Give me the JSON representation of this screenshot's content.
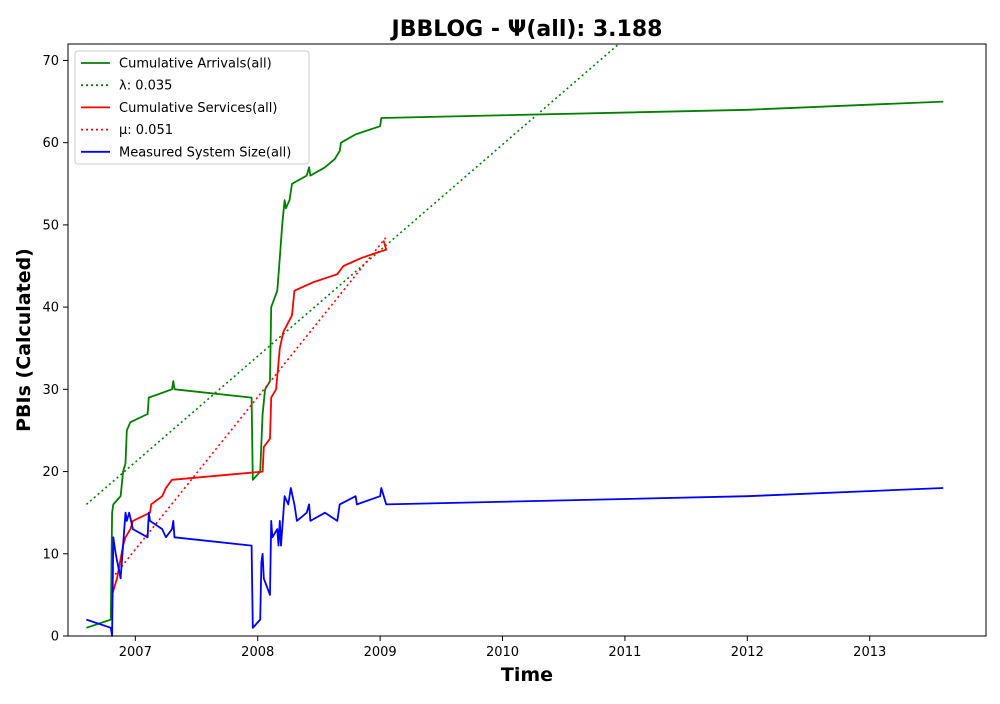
{
  "chart_data": {
    "type": "line",
    "title": "JBBLOG -  Ψ(all): 3.188",
    "xlabel": "Time",
    "ylabel": "PBIs (Calculated)",
    "xlim": [
      2006.45,
      2013.95
    ],
    "ylim": [
      0,
      72
    ],
    "x_ticks": [
      2007,
      2008,
      2009,
      2010,
      2011,
      2012,
      2013
    ],
    "y_ticks": [
      0,
      10,
      20,
      30,
      40,
      50,
      60,
      70
    ],
    "legend_position": "top-left",
    "grid": false,
    "series": [
      {
        "name": "Cumulative Arrivals(all)",
        "color": "#008000",
        "style": "solid",
        "points": [
          [
            2006.6,
            1
          ],
          [
            2006.8,
            2
          ],
          [
            2006.81,
            15
          ],
          [
            2006.82,
            16
          ],
          [
            2006.88,
            17
          ],
          [
            2006.9,
            20
          ],
          [
            2006.92,
            21
          ],
          [
            2006.93,
            25
          ],
          [
            2006.96,
            26
          ],
          [
            2007.1,
            27
          ],
          [
            2007.11,
            29
          ],
          [
            2007.3,
            30
          ],
          [
            2007.31,
            31
          ],
          [
            2007.32,
            30
          ],
          [
            2007.95,
            29
          ],
          [
            2007.96,
            19
          ],
          [
            2008.02,
            20
          ],
          [
            2008.04,
            27
          ],
          [
            2008.06,
            30
          ],
          [
            2008.1,
            31
          ],
          [
            2008.11,
            40
          ],
          [
            2008.16,
            42
          ],
          [
            2008.18,
            46
          ],
          [
            2008.2,
            50
          ],
          [
            2008.22,
            53
          ],
          [
            2008.23,
            52
          ],
          [
            2008.26,
            53
          ],
          [
            2008.28,
            55
          ],
          [
            2008.4,
            56
          ],
          [
            2008.42,
            57
          ],
          [
            2008.43,
            56
          ],
          [
            2008.55,
            57
          ],
          [
            2008.63,
            58
          ],
          [
            2008.67,
            59
          ],
          [
            2008.68,
            60
          ],
          [
            2008.8,
            61
          ],
          [
            2009.0,
            62
          ],
          [
            2009.01,
            63
          ],
          [
            2012.0,
            64
          ],
          [
            2013.6,
            65
          ]
        ]
      },
      {
        "name": "λ: 0.035",
        "color": "#008000",
        "style": "dotted",
        "points": [
          [
            2006.6,
            16
          ],
          [
            2010.95,
            72
          ]
        ]
      },
      {
        "name": "Cumulative Services(all)",
        "color": "#ff0000",
        "style": "solid",
        "points": [
          [
            2006.81,
            5
          ],
          [
            2006.85,
            7
          ],
          [
            2006.9,
            11
          ],
          [
            2006.92,
            12
          ],
          [
            2006.96,
            13
          ],
          [
            2006.98,
            14
          ],
          [
            2007.12,
            15
          ],
          [
            2007.13,
            16
          ],
          [
            2007.22,
            17
          ],
          [
            2007.25,
            18
          ],
          [
            2007.3,
            19
          ],
          [
            2008.04,
            20
          ],
          [
            2008.05,
            23
          ],
          [
            2008.1,
            24
          ],
          [
            2008.11,
            29
          ],
          [
            2008.15,
            30
          ],
          [
            2008.18,
            35
          ],
          [
            2008.21,
            37
          ],
          [
            2008.28,
            39
          ],
          [
            2008.3,
            42
          ],
          [
            2008.45,
            43
          ],
          [
            2008.65,
            44
          ],
          [
            2008.7,
            45
          ],
          [
            2008.85,
            46
          ],
          [
            2009.05,
            47
          ],
          [
            2009.03,
            48
          ],
          [
            2009.05,
            47
          ]
        ]
      },
      {
        "name": "μ: 0.051",
        "color": "#ff0000",
        "style": "dotted",
        "points": [
          [
            2006.81,
            7
          ],
          [
            2009.05,
            48.5
          ]
        ]
      },
      {
        "name": "Measured System Size(all)",
        "color": "#0000ff",
        "style": "solid",
        "points": [
          [
            2006.6,
            2
          ],
          [
            2006.8,
            1
          ],
          [
            2006.81,
            0
          ],
          [
            2006.82,
            12
          ],
          [
            2006.84,
            10
          ],
          [
            2006.88,
            7
          ],
          [
            2006.92,
            15
          ],
          [
            2006.93,
            14
          ],
          [
            2006.95,
            15
          ],
          [
            2006.98,
            13
          ],
          [
            2007.1,
            12
          ],
          [
            2007.11,
            15
          ],
          [
            2007.12,
            14
          ],
          [
            2007.22,
            13
          ],
          [
            2007.25,
            12
          ],
          [
            2007.3,
            13
          ],
          [
            2007.31,
            14
          ],
          [
            2007.32,
            12
          ],
          [
            2007.95,
            11
          ],
          [
            2007.96,
            1
          ],
          [
            2008.02,
            2
          ],
          [
            2008.03,
            9
          ],
          [
            2008.04,
            10
          ],
          [
            2008.05,
            7
          ],
          [
            2008.1,
            5
          ],
          [
            2008.11,
            14
          ],
          [
            2008.12,
            12
          ],
          [
            2008.16,
            13
          ],
          [
            2008.17,
            11
          ],
          [
            2008.18,
            14
          ],
          [
            2008.19,
            11
          ],
          [
            2008.22,
            17
          ],
          [
            2008.25,
            16
          ],
          [
            2008.27,
            18
          ],
          [
            2008.3,
            16
          ],
          [
            2008.32,
            14
          ],
          [
            2008.4,
            15
          ],
          [
            2008.42,
            16
          ],
          [
            2008.43,
            14
          ],
          [
            2008.55,
            15
          ],
          [
            2008.65,
            14
          ],
          [
            2008.67,
            16
          ],
          [
            2008.8,
            17
          ],
          [
            2008.81,
            16
          ],
          [
            2009.0,
            17
          ],
          [
            2009.01,
            18
          ],
          [
            2009.05,
            16
          ],
          [
            2012.0,
            17
          ],
          [
            2013.6,
            18
          ]
        ]
      }
    ]
  }
}
